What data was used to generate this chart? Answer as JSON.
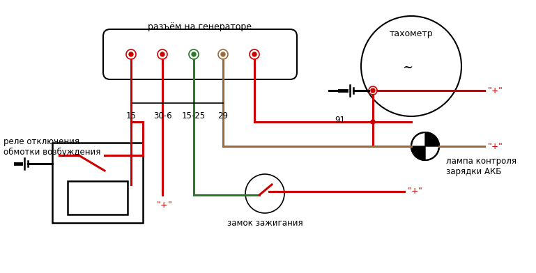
{
  "bg_color": "#ffffff",
  "connector_label": "разъём на генераторе",
  "relay_label": "реле отключения\nобмотки возбуждения",
  "tach_label": "тахометр",
  "lamp_label": "лампа контроля\nзарядки АКБ",
  "ignition_label": "замок зажигания",
  "pin_labels": [
    "15",
    "30-6",
    "15-25",
    "29",
    "91"
  ],
  "red": "#cc0000",
  "green": "#2a7a2a",
  "brown": "#9b6a3a",
  "black": "#000000"
}
